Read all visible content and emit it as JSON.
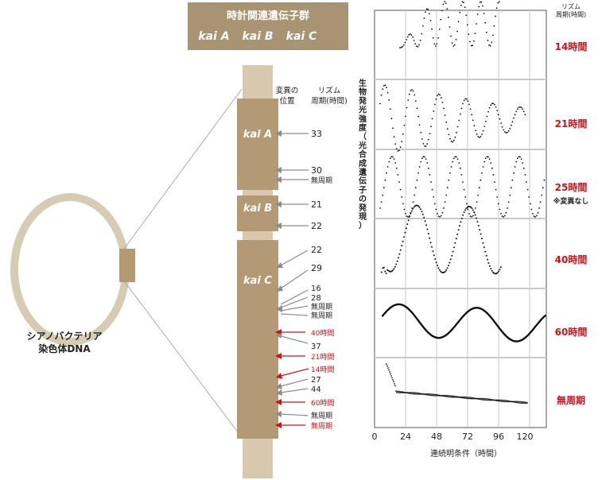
{
  "header": {
    "title": "時計関連遺伝子群",
    "genes": [
      "kai A",
      "kai B",
      "kai C"
    ]
  },
  "chromosome": {
    "label_line1": "シアノバクテリア",
    "label_line2": "染色体DNA"
  },
  "column_headers": {
    "position_line1": "変異の",
    "position_line2": "位置",
    "rhythm_line1": "リズム",
    "rhythm_line2": "周期(時間)"
  },
  "blocks": [
    {
      "name": "kai A",
      "mutations": [
        {
          "label": "33",
          "highlight": false
        },
        {
          "label": "30",
          "highlight": false
        },
        {
          "label": "無周期",
          "highlight": false
        }
      ]
    },
    {
      "name": "kai B",
      "mutations": [
        {
          "label": "21",
          "highlight": false
        },
        {
          "label": "22",
          "highlight": false
        }
      ]
    },
    {
      "name": "kai C",
      "mutations": [
        {
          "label": "22",
          "highlight": false
        },
        {
          "label": "29",
          "highlight": false
        },
        {
          "label": "16",
          "highlight": false
        },
        {
          "label": "28",
          "highlight": false
        },
        {
          "label": "無周期",
          "highlight": false
        },
        {
          "label": "無周期",
          "highlight": false
        },
        {
          "label": "40時間",
          "highlight": true
        },
        {
          "label": "37",
          "highlight": false
        },
        {
          "label": "21時間",
          "highlight": true
        },
        {
          "label": "14時間",
          "highlight": true
        },
        {
          "label": "27",
          "highlight": false
        },
        {
          "label": "44",
          "highlight": false
        },
        {
          "label": "60時間",
          "highlight": true
        },
        {
          "label": "無周期",
          "highlight": false
        },
        {
          "label": "無周期",
          "highlight": true
        }
      ]
    }
  ],
  "chart": {
    "y_axis_label": "生物発光強度（光合成遺伝子の発現）",
    "x_axis_label": "連続明条件（時間）",
    "x_ticks": [
      "0",
      "24",
      "48",
      "72",
      "96",
      "120"
    ],
    "right_header_line1": "リズム",
    "right_header_line2": "周期(時間)",
    "panels": [
      {
        "period_label": "14時間",
        "note": ""
      },
      {
        "period_label": "21時間",
        "note": ""
      },
      {
        "period_label": "25時間",
        "note": "※変異なし"
      },
      {
        "period_label": "40時間",
        "note": ""
      },
      {
        "period_label": "60時間",
        "note": ""
      },
      {
        "period_label": "無周期",
        "note": ""
      }
    ]
  },
  "colors": {
    "tan": "#b39a74",
    "tan_light": "#cbb99d",
    "highlight_red": "#d0111a",
    "header_bg": "#a89372",
    "arrow_gray": "#8c8c8c"
  }
}
